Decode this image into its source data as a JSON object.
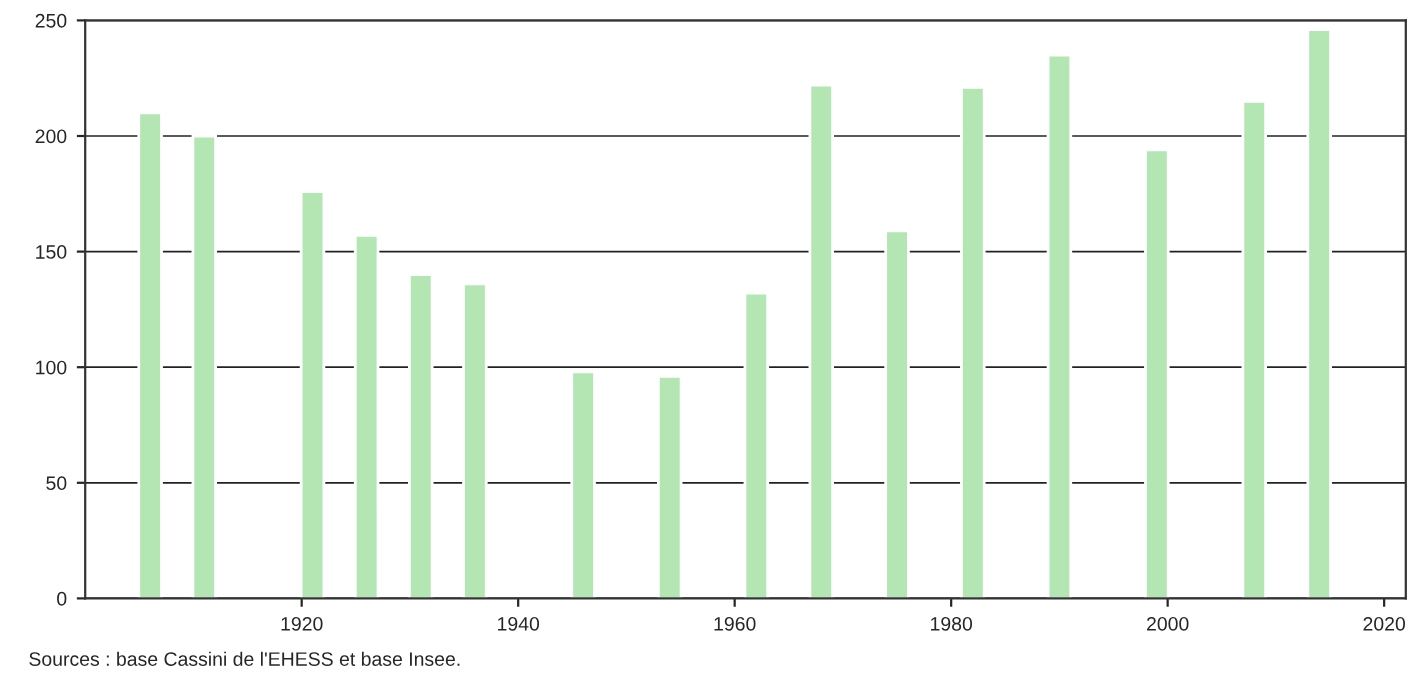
{
  "chart_data": {
    "type": "bar",
    "x": [
      1906,
      1911,
      1921,
      1926,
      1931,
      1936,
      1946,
      1954,
      1962,
      1968,
      1975,
      1982,
      1990,
      1999,
      2008,
      2014
    ],
    "values": [
      210,
      200,
      176,
      157,
      140,
      136,
      98,
      96,
      132,
      222,
      159,
      221,
      235,
      194,
      215,
      246
    ],
    "color": "#b3e6b3",
    "xlim": [
      1900,
      2022
    ],
    "ylim": [
      0,
      250
    ],
    "xticks": [
      1920,
      1940,
      1960,
      1980,
      2000,
      2020
    ],
    "yticks": [
      0,
      50,
      100,
      150,
      200,
      250
    ],
    "grid": "y",
    "annotations": [
      "Sources : base Cassini de l'EHESS et base Insee."
    ]
  }
}
